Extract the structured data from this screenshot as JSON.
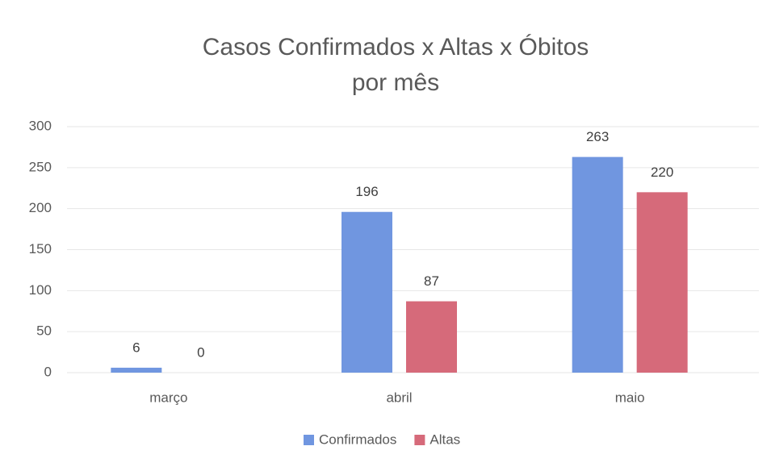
{
  "chart_data": {
    "type": "bar",
    "title": [
      "Casos Confirmados x Altas x Óbitos",
      "por mês"
    ],
    "categories": [
      "março",
      "abril",
      "maio"
    ],
    "series": [
      {
        "name": "Confirmados",
        "color": "#7096e0",
        "values": [
          6,
          196,
          263
        ]
      },
      {
        "name": "Altas",
        "color": "#d66a7a",
        "values": [
          0,
          87,
          220
        ]
      }
    ],
    "ylim": [
      0,
      300
    ],
    "yticks": [
      0,
      50,
      100,
      150,
      200,
      250,
      300
    ],
    "grid": true,
    "legend": "bottom"
  }
}
